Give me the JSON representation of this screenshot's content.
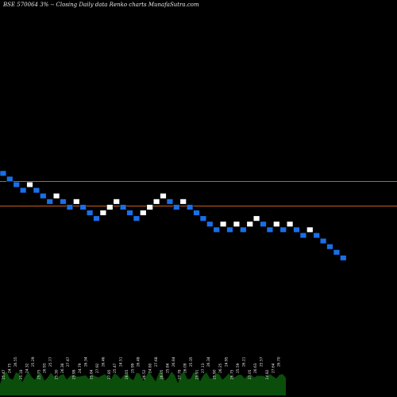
{
  "chart_data": {
    "type": "renko",
    "title": "BSE 570064  3% -- Closing Daily data  Renko  charts MunafaSutra.com",
    "brick_directions": [
      "down",
      "down",
      "down",
      "down",
      "up",
      "down",
      "down",
      "down",
      "up",
      "down",
      "down",
      "up",
      "down",
      "down",
      "down",
      "up",
      "up",
      "up",
      "down",
      "down",
      "down",
      "up",
      "up",
      "up",
      "up",
      "down",
      "down",
      "up",
      "down",
      "down",
      "down",
      "down",
      "down",
      "up",
      "down",
      "up",
      "down",
      "up",
      "up",
      "down",
      "down",
      "up",
      "down",
      "up",
      "down",
      "down",
      "up",
      "down",
      "down",
      "down",
      "down",
      "down"
    ],
    "colors": {
      "up": "#ffffff",
      "down": "#1a6fe8",
      "brick_border": "#000000",
      "reference_line": "#c8601a",
      "volume": "#0b4d0b"
    },
    "reference_lines_count": 2,
    "volume_labels": [
      "25.47",
      "24.75",
      "26.55",
      "25.18",
      "24.32",
      "25.29",
      "25.75",
      "26.93",
      "25.77",
      "25.30",
      "26.38",
      "27.47",
      "25.98",
      "24.79",
      "26.34",
      "25.84",
      "27.92",
      "26.46",
      "27.85",
      "25.47",
      "24.51",
      "26.55",
      "25.99",
      "26.48",
      "26.52",
      "24.80",
      "27.68",
      "26.05",
      "25.84",
      "26.84",
      "27.78",
      "26.09",
      "25.35",
      "25.91",
      "27.13",
      "26.34",
      "25.90",
      "26.25",
      "24.95",
      "26.75",
      "25.59",
      "26.21",
      "27.05",
      "26.63",
      "25.57",
      "24.82",
      "27.64",
      "26.70"
    ]
  }
}
